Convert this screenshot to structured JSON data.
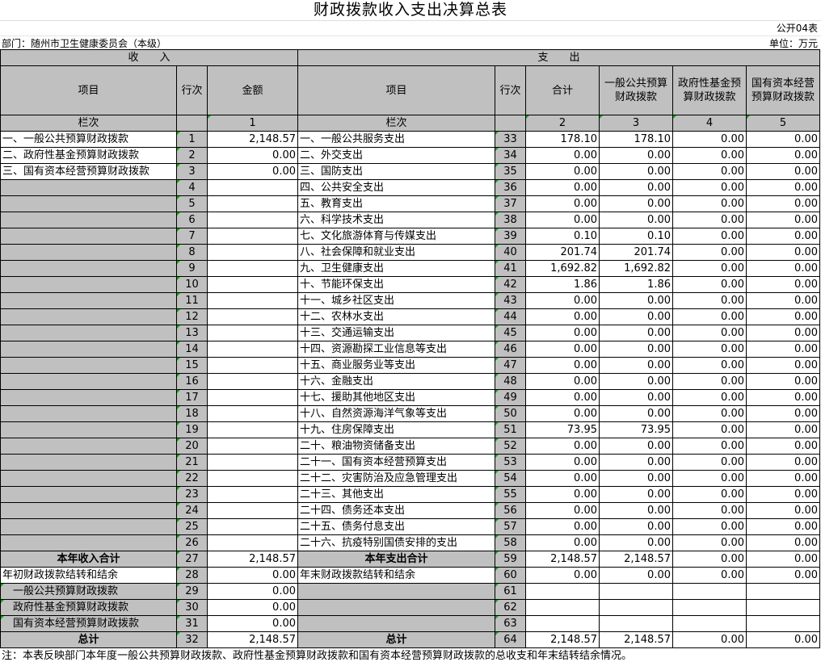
{
  "title": "财政拨款收入支出决算总表",
  "form_no": "公开04表",
  "department": "部门：随州市卫生健康委员会（本级）",
  "unit": "单位：万元",
  "header": {
    "income": "收　　入",
    "expense": "支　　出",
    "item": "项目",
    "line": "行次",
    "amount": "金额",
    "total": "合计",
    "general": "一般公共预算财政拨款",
    "fund": "政府性基金预算财政拨款",
    "soe": "国有资本经营预算财政拨款",
    "col_label": "栏次",
    "c1": "1",
    "c2": "2",
    "c3": "3",
    "c4": "4",
    "c5": "5"
  },
  "rows": [
    {
      "inc": "一、一般公共预算财政拨款",
      "il": "1",
      "ia": "2,148.57",
      "exp": "一、一般公共服务支出",
      "el": "33",
      "v": [
        "178.10",
        "178.10",
        "0.00",
        "0.00"
      ]
    },
    {
      "inc": "二、政府性基金预算财政拨款",
      "il": "2",
      "ia": "0.00",
      "exp": "二、外交支出",
      "el": "34",
      "v": [
        "0.00",
        "0.00",
        "0.00",
        "0.00"
      ]
    },
    {
      "inc": "三、国有资本经营预算财政拨款",
      "il": "3",
      "ia": "0.00",
      "exp": "三、国防支出",
      "el": "35",
      "v": [
        "0.00",
        "0.00",
        "0.00",
        "0.00"
      ]
    },
    {
      "inc": "",
      "il": "4",
      "ia": "",
      "exp": "四、公共安全支出",
      "el": "36",
      "v": [
        "0.00",
        "0.00",
        "0.00",
        "0.00"
      ]
    },
    {
      "inc": "",
      "il": "5",
      "ia": "",
      "exp": "五、教育支出",
      "el": "37",
      "v": [
        "0.00",
        "0.00",
        "0.00",
        "0.00"
      ]
    },
    {
      "inc": "",
      "il": "6",
      "ia": "",
      "exp": "六、科学技术支出",
      "el": "38",
      "v": [
        "0.00",
        "0.00",
        "0.00",
        "0.00"
      ]
    },
    {
      "inc": "",
      "il": "7",
      "ia": "",
      "exp": "七、文化旅游体育与传媒支出",
      "el": "39",
      "v": [
        "0.10",
        "0.10",
        "0.00",
        "0.00"
      ]
    },
    {
      "inc": "",
      "il": "8",
      "ia": "",
      "exp": "八、社会保障和就业支出",
      "el": "40",
      "v": [
        "201.74",
        "201.74",
        "0.00",
        "0.00"
      ]
    },
    {
      "inc": "",
      "il": "9",
      "ia": "",
      "exp": "九、卫生健康支出",
      "el": "41",
      "v": [
        "1,692.82",
        "1,692.82",
        "0.00",
        "0.00"
      ]
    },
    {
      "inc": "",
      "il": "10",
      "ia": "",
      "exp": "十、节能环保支出",
      "el": "42",
      "v": [
        "1.86",
        "1.86",
        "0.00",
        "0.00"
      ]
    },
    {
      "inc": "",
      "il": "11",
      "ia": "",
      "exp": "十一、城乡社区支出",
      "el": "43",
      "v": [
        "0.00",
        "0.00",
        "0.00",
        "0.00"
      ]
    },
    {
      "inc": "",
      "il": "12",
      "ia": "",
      "exp": "十二、农林水支出",
      "el": "44",
      "v": [
        "0.00",
        "0.00",
        "0.00",
        "0.00"
      ]
    },
    {
      "inc": "",
      "il": "13",
      "ia": "",
      "exp": "十三、交通运输支出",
      "el": "45",
      "v": [
        "0.00",
        "0.00",
        "0.00",
        "0.00"
      ]
    },
    {
      "inc": "",
      "il": "14",
      "ia": "",
      "exp": "十四、资源勘探工业信息等支出",
      "el": "46",
      "v": [
        "0.00",
        "0.00",
        "0.00",
        "0.00"
      ]
    },
    {
      "inc": "",
      "il": "15",
      "ia": "",
      "exp": "十五、商业服务业等支出",
      "el": "47",
      "v": [
        "0.00",
        "0.00",
        "0.00",
        "0.00"
      ]
    },
    {
      "inc": "",
      "il": "16",
      "ia": "",
      "exp": "十六、金融支出",
      "el": "48",
      "v": [
        "0.00",
        "0.00",
        "0.00",
        "0.00"
      ]
    },
    {
      "inc": "",
      "il": "17",
      "ia": "",
      "exp": "十七、援助其他地区支出",
      "el": "49",
      "v": [
        "0.00",
        "0.00",
        "0.00",
        "0.00"
      ]
    },
    {
      "inc": "",
      "il": "18",
      "ia": "",
      "exp": "十八、自然资源海洋气象等支出",
      "el": "50",
      "v": [
        "0.00",
        "0.00",
        "0.00",
        "0.00"
      ]
    },
    {
      "inc": "",
      "il": "19",
      "ia": "",
      "exp": "十九、住房保障支出",
      "el": "51",
      "v": [
        "73.95",
        "73.95",
        "0.00",
        "0.00"
      ]
    },
    {
      "inc": "",
      "il": "20",
      "ia": "",
      "exp": "二十、粮油物资储备支出",
      "el": "52",
      "v": [
        "0.00",
        "0.00",
        "0.00",
        "0.00"
      ]
    },
    {
      "inc": "",
      "il": "21",
      "ia": "",
      "exp": "二十一、国有资本经营预算支出",
      "el": "53",
      "v": [
        "0.00",
        "0.00",
        "0.00",
        "0.00"
      ]
    },
    {
      "inc": "",
      "il": "22",
      "ia": "",
      "exp": "二十二、灾害防治及应急管理支出",
      "el": "54",
      "v": [
        "0.00",
        "0.00",
        "0.00",
        "0.00"
      ]
    },
    {
      "inc": "",
      "il": "23",
      "ia": "",
      "exp": "二十三、其他支出",
      "el": "55",
      "v": [
        "0.00",
        "0.00",
        "0.00",
        "0.00"
      ]
    },
    {
      "inc": "",
      "il": "24",
      "ia": "",
      "exp": "二十四、债务还本支出",
      "el": "56",
      "v": [
        "0.00",
        "0.00",
        "0.00",
        "0.00"
      ]
    },
    {
      "inc": "",
      "il": "25",
      "ia": "",
      "exp": "二十五、债务付息支出",
      "el": "57",
      "v": [
        "0.00",
        "0.00",
        "0.00",
        "0.00"
      ]
    },
    {
      "inc": "",
      "il": "26",
      "ia": "",
      "exp": "二十六、抗疫特别国债安排的支出",
      "el": "58",
      "v": [
        "0.00",
        "0.00",
        "0.00",
        "0.00"
      ]
    },
    {
      "inc": "本年收入合计",
      "il": "27",
      "ia": "2,148.57",
      "exp": "本年支出合计",
      "el": "59",
      "v": [
        "2,148.57",
        "2,148.57",
        "0.00",
        "0.00"
      ],
      "bold": true
    },
    {
      "inc": "年初财政拨款结转和结余",
      "il": "28",
      "ia": "0.00",
      "exp": "年末财政拨款结转和结余",
      "el": "60",
      "v": [
        "0.00",
        "0.00",
        "0.00",
        "0.00"
      ]
    },
    {
      "inc": "　一般公共预算财政拨款",
      "il": "29",
      "ia": "0.00",
      "exp": "",
      "el": "61",
      "v": [
        "",
        "",
        "",
        ""
      ]
    },
    {
      "inc": "　政府性基金预算财政拨款",
      "il": "30",
      "ia": "0.00",
      "exp": "",
      "el": "62",
      "v": [
        "",
        "",
        "",
        ""
      ]
    },
    {
      "inc": "　国有资本经营预算财政拨款",
      "il": "31",
      "ia": "0.00",
      "exp": "",
      "el": "63",
      "v": [
        "",
        "",
        "",
        ""
      ]
    },
    {
      "inc": "总计",
      "il": "32",
      "ia": "2,148.57",
      "exp": "总计",
      "el": "64",
      "v": [
        "2,148.57",
        "2,148.57",
        "0.00",
        "0.00"
      ],
      "bold": true
    }
  ],
  "note": "注：本表反映部门本年度一般公共预算财政拨款、政府性基金预算财政拨款和国有资本经营预算财政拨款的总收支和年末结转结余情况。",
  "colors": {
    "header_gray": "#c0c0c0",
    "marker_green": "#00aa00"
  }
}
